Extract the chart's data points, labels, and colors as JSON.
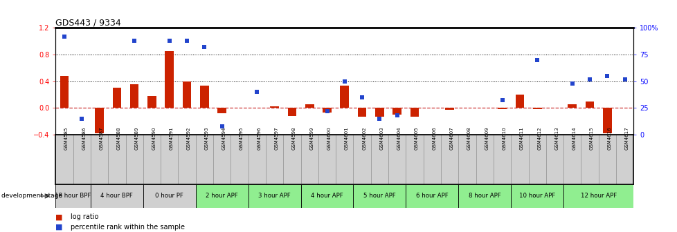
{
  "title": "GDS443 / 9334",
  "samples": [
    "GSM4585",
    "GSM4586",
    "GSM4587",
    "GSM4588",
    "GSM4589",
    "GSM4590",
    "GSM4591",
    "GSM4592",
    "GSM4593",
    "GSM4594",
    "GSM4595",
    "GSM4596",
    "GSM4597",
    "GSM4598",
    "GSM4599",
    "GSM4600",
    "GSM4601",
    "GSM4602",
    "GSM4603",
    "GSM4604",
    "GSM4605",
    "GSM4606",
    "GSM4607",
    "GSM4608",
    "GSM4609",
    "GSM4610",
    "GSM4611",
    "GSM4612",
    "GSM4613",
    "GSM4614",
    "GSM4615",
    "GSM4616",
    "GSM4617"
  ],
  "log_ratio": [
    0.48,
    0.0,
    -0.38,
    0.3,
    0.35,
    0.18,
    0.85,
    0.4,
    0.33,
    -0.08,
    0.0,
    0.0,
    0.02,
    -0.12,
    0.05,
    -0.07,
    0.33,
    -0.13,
    -0.13,
    -0.1,
    -0.13,
    0.0,
    -0.03,
    0.0,
    0.0,
    -0.02,
    0.2,
    -0.02,
    0.0,
    0.05,
    0.1,
    -0.38,
    0.0
  ],
  "percentile_rank": [
    92,
    15,
    0,
    0,
    88,
    0,
    88,
    88,
    82,
    8,
    0,
    40,
    0,
    0,
    0,
    22,
    50,
    35,
    15,
    18,
    0,
    0,
    0,
    0,
    0,
    32,
    0,
    70,
    0,
    48,
    52,
    55,
    52
  ],
  "stage_groups": [
    {
      "label": "18 hour BPF",
      "start": 0,
      "end": 2,
      "color": "#d0d0d0"
    },
    {
      "label": "4 hour BPF",
      "start": 2,
      "end": 5,
      "color": "#d0d0d0"
    },
    {
      "label": "0 hour PF",
      "start": 5,
      "end": 8,
      "color": "#d0d0d0"
    },
    {
      "label": "2 hour APF",
      "start": 8,
      "end": 11,
      "color": "#90ee90"
    },
    {
      "label": "3 hour APF",
      "start": 11,
      "end": 14,
      "color": "#90ee90"
    },
    {
      "label": "4 hour APF",
      "start": 14,
      "end": 17,
      "color": "#90ee90"
    },
    {
      "label": "5 hour APF",
      "start": 17,
      "end": 20,
      "color": "#90ee90"
    },
    {
      "label": "6 hour APF",
      "start": 20,
      "end": 23,
      "color": "#90ee90"
    },
    {
      "label": "8 hour APF",
      "start": 23,
      "end": 26,
      "color": "#90ee90"
    },
    {
      "label": "10 hour APF",
      "start": 26,
      "end": 29,
      "color": "#90ee90"
    },
    {
      "label": "12 hour APF",
      "start": 29,
      "end": 33,
      "color": "#90ee90"
    }
  ],
  "bar_color": "#cc2200",
  "dot_color": "#2244cc",
  "ylim_left": [
    -0.4,
    1.2
  ],
  "ylim_right": [
    0,
    100
  ],
  "yticks_left": [
    -0.4,
    0.0,
    0.4,
    0.8,
    1.2
  ],
  "yticks_right": [
    0,
    25,
    50,
    75,
    100
  ],
  "ytick_labels_right": [
    "0",
    "25",
    "50",
    "75",
    "100%"
  ],
  "legend_label_bar": "log ratio",
  "legend_label_dot": "percentile rank within the sample",
  "dev_stage_label": "development stage",
  "sample_bg_color": "#d0d0d0",
  "sample_border_color": "#888888"
}
